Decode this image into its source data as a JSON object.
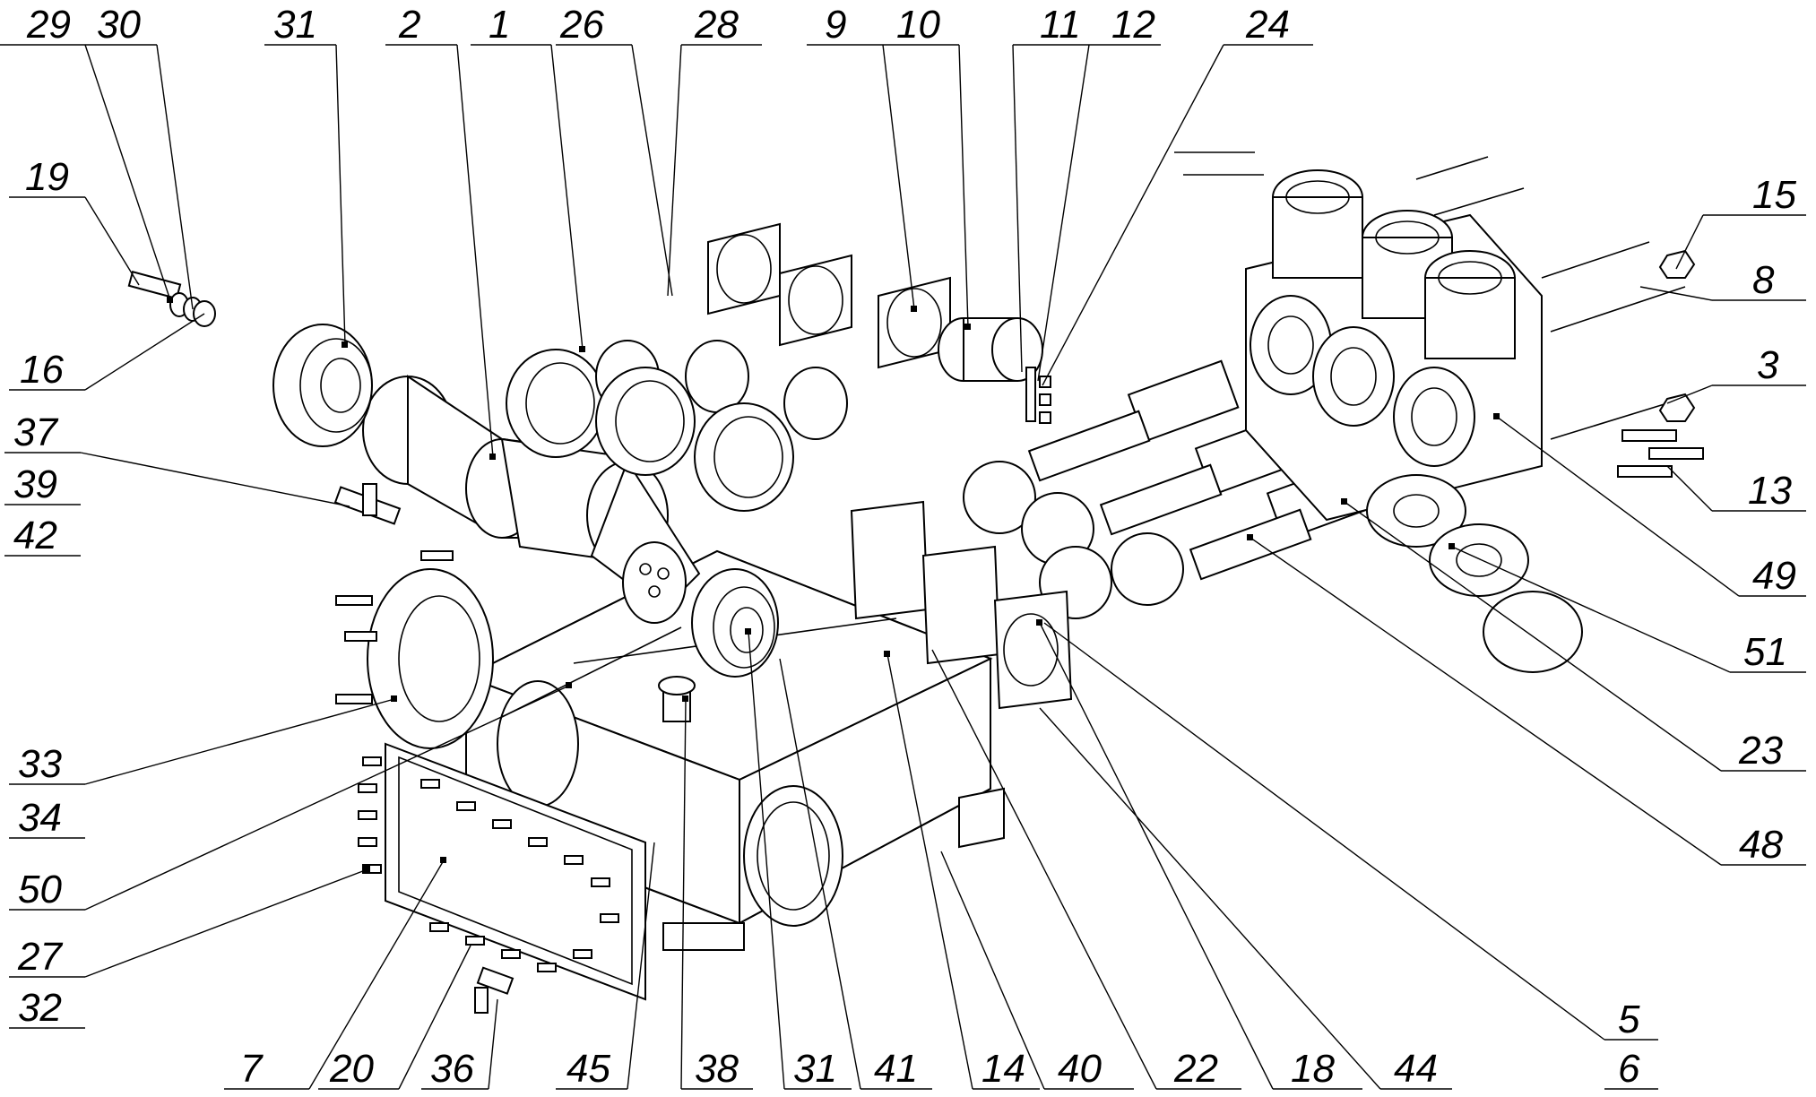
{
  "diagram": {
    "type": "exploded-assembly-drawing",
    "callouts": {
      "c29": "29",
      "c30": "30",
      "c31a": "31",
      "c2": "2",
      "c1": "1",
      "c26": "26",
      "c28": "28",
      "c9": "9",
      "c10": "10",
      "c11": "11",
      "c12": "12",
      "c24": "24",
      "c19": "19",
      "c16": "16",
      "c37": "37",
      "c39": "39",
      "c42": "42",
      "c15": "15",
      "c8": "8",
      "c3": "3",
      "c13": "13",
      "c49": "49",
      "c51": "51",
      "c23": "23",
      "c48": "48",
      "c33": "33",
      "c34": "34",
      "c50": "50",
      "c27": "27",
      "c32": "32",
      "c7": "7",
      "c20": "20",
      "c36": "36",
      "c45": "45",
      "c38": "38",
      "c31b": "31",
      "c41": "41",
      "c14": "14",
      "c40": "40",
      "c22": "22",
      "c18": "18",
      "c44": "44",
      "c5": "5",
      "c6": "6"
    }
  }
}
